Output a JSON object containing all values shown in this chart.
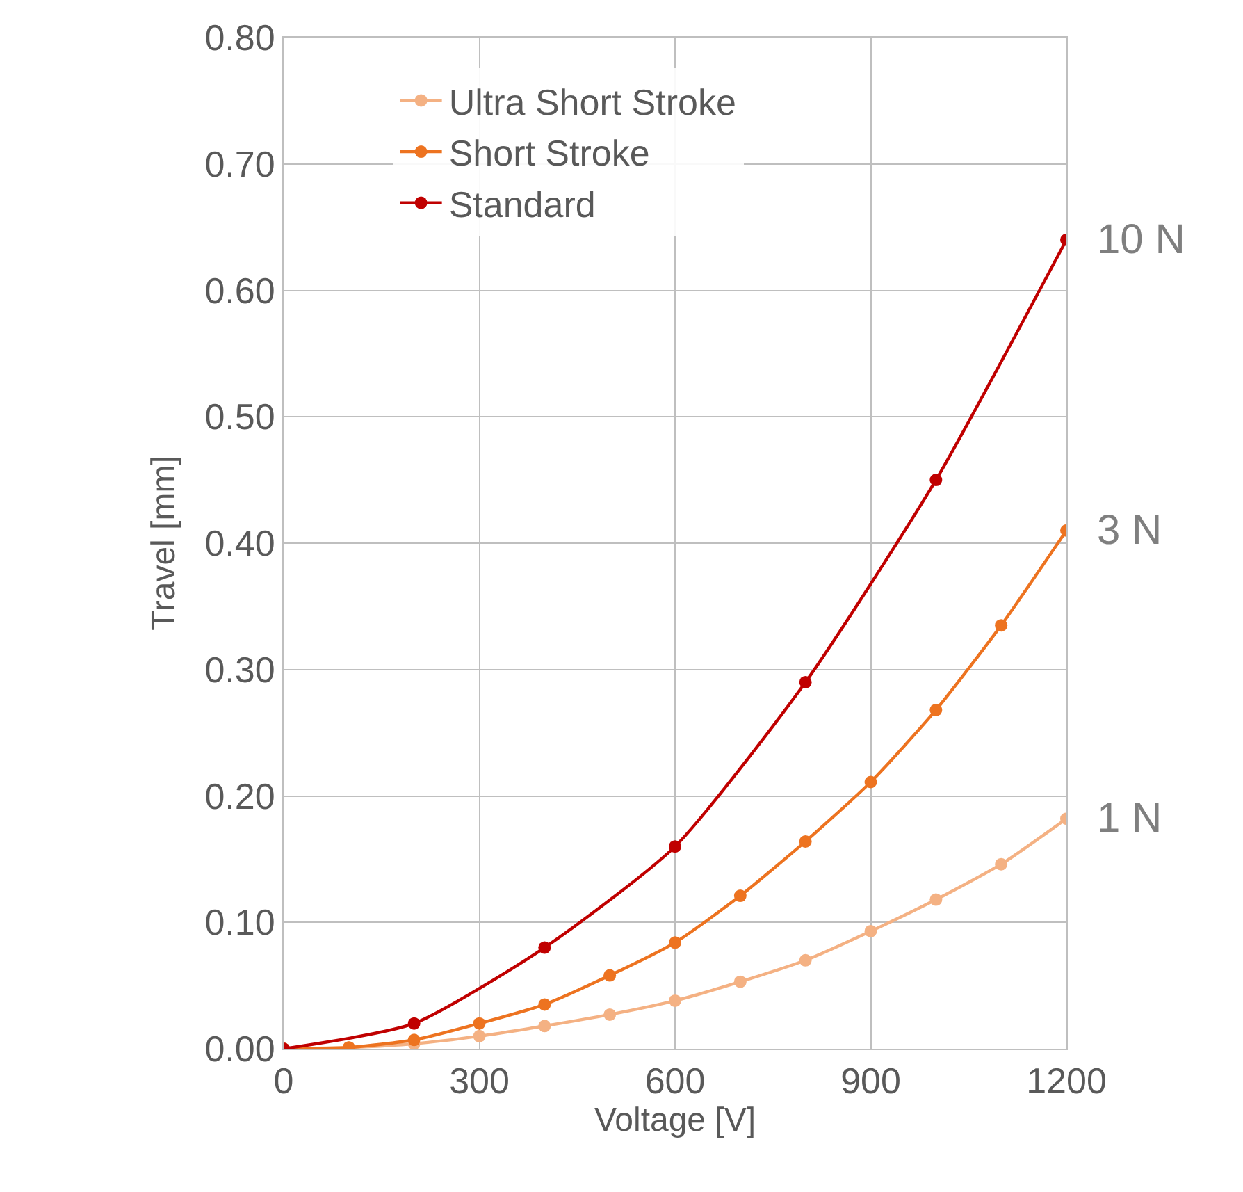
{
  "chart_data": {
    "type": "line",
    "xlabel": "Voltage [V]",
    "ylabel": "Travel [mm]",
    "xlim": [
      0,
      1200
    ],
    "xticks": [
      0,
      300,
      600,
      900,
      1200
    ],
    "ylim": [
      0,
      0.8
    ],
    "yticks": [
      {
        "value": 0,
        "label": "0.00"
      },
      {
        "value": 0.1,
        "label": "0.10"
      },
      {
        "value": 0.2,
        "label": "0.20"
      },
      {
        "value": 0.3,
        "label": "0.30"
      },
      {
        "value": 0.4,
        "label": "0.40"
      },
      {
        "value": 0.5,
        "label": "0.50"
      },
      {
        "value": 0.6,
        "label": "0.60"
      },
      {
        "value": 0.7,
        "label": "0.70"
      },
      {
        "value": 0.8,
        "label": "0.80"
      }
    ],
    "grid": true,
    "legend": "top left",
    "marker": "circle",
    "line_style": "solid",
    "series": [
      {
        "name": "Ultra Short Stroke",
        "color": "#f4b183",
        "x": [
          0,
          100,
          200,
          300,
          400,
          500,
          600,
          700,
          800,
          900,
          1000,
          1100,
          1200
        ],
        "values": [
          0,
          0.001,
          0.004,
          0.01,
          0.018,
          0.027,
          0.038,
          0.053,
          0.07,
          0.093,
          0.118,
          0.146,
          0.182
        ]
      },
      {
        "name": "Short Stroke",
        "color": "#ed7320",
        "x": [
          0,
          100,
          200,
          300,
          400,
          500,
          600,
          700,
          800,
          900,
          1000,
          1100,
          1200
        ],
        "values": [
          0,
          0.001,
          0.007,
          0.02,
          0.035,
          0.058,
          0.084,
          0.121,
          0.164,
          0.211,
          0.268,
          0.335,
          0.41
        ]
      },
      {
        "name": "Standard",
        "color": "#c00000",
        "x": [
          0,
          200,
          400,
          600,
          800,
          1000,
          1200
        ],
        "values": [
          0,
          0.02,
          0.08,
          0.16,
          0.29,
          0.45,
          0.64
        ]
      }
    ],
    "annotations": [
      "10 N",
      "3 N",
      "1 N"
    ]
  }
}
